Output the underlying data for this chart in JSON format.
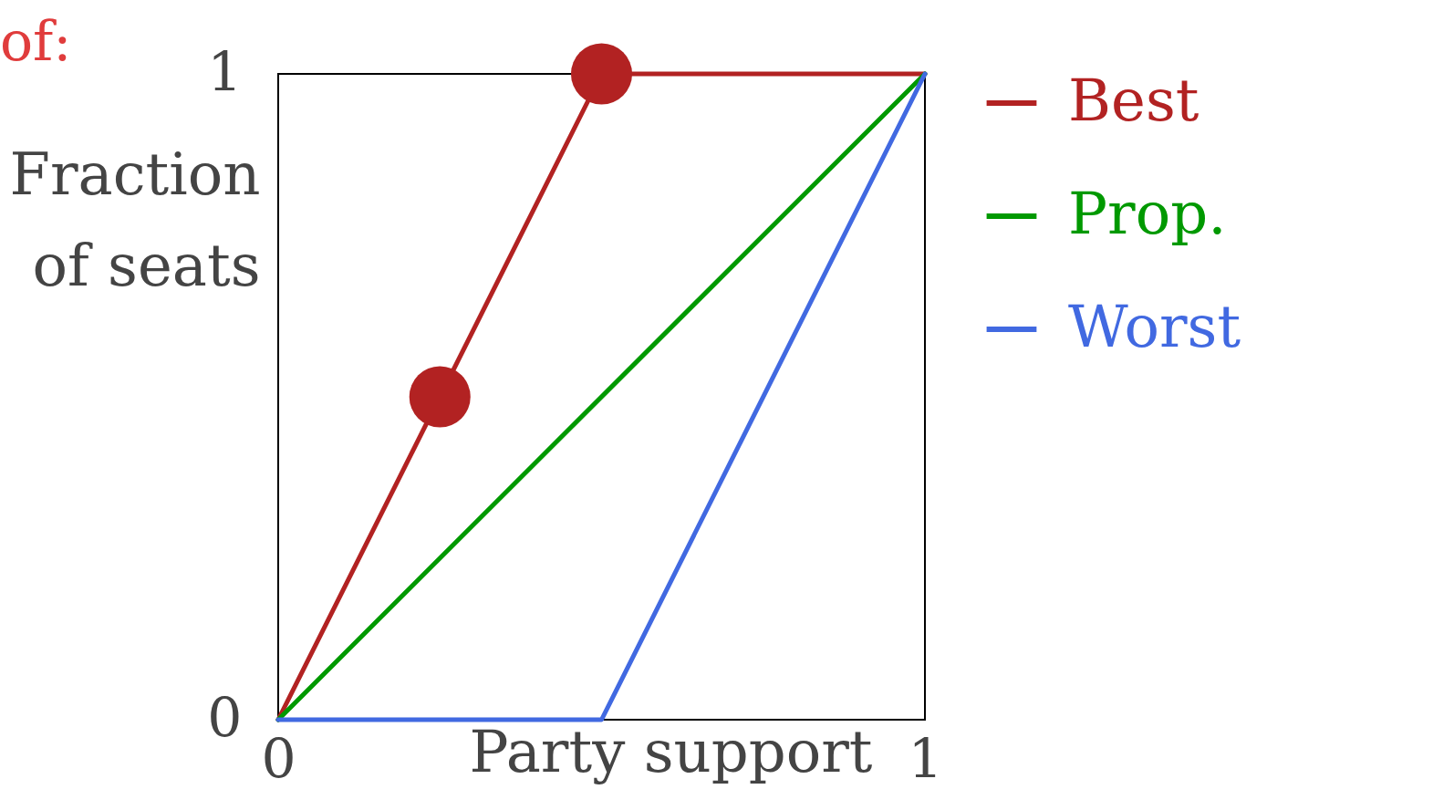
{
  "chart_data": {
    "type": "line",
    "xlabel": "Party support",
    "ylabel": "Fraction of seats",
    "annotations": [
      "of:"
    ],
    "xlim": [
      0,
      1
    ],
    "ylim": [
      0,
      1
    ],
    "xticks": [
      0,
      1
    ],
    "yticks": [
      0,
      1
    ],
    "grid": false,
    "legend": "right",
    "marker": "none",
    "line_style": "solid",
    "series": [
      {
        "name": "Best",
        "color": "#b22222",
        "x": [
          0,
          0.5,
          1
        ],
        "values": [
          0,
          1,
          1
        ]
      },
      {
        "name": "Prop.",
        "color": "#009900",
        "x": [
          0,
          1
        ],
        "values": [
          0,
          1
        ]
      },
      {
        "name": "Worst",
        "color": "#4169e1",
        "x": [
          0,
          0.5,
          1
        ],
        "values": [
          0,
          0,
          1
        ]
      },
      {
        "type": "scatter",
        "marker": "circle",
        "color": "#b22222",
        "x": [
          0.25,
          0.5
        ],
        "values": [
          0.5,
          1
        ]
      }
    ]
  }
}
